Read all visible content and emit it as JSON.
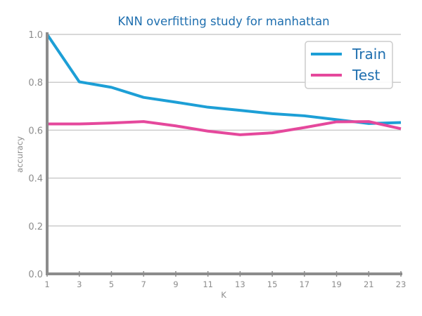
{
  "colors": {
    "title": "#1f6faf",
    "train": "#1d9fd6",
    "test": "#e5489c",
    "axis": "#8c8c8c",
    "grid": "#cccccc",
    "tick_text": "#8c8c8c",
    "legend_text": "#1f6faf"
  },
  "chart_data": {
    "type": "line",
    "title": "KNN overfitting study for manhattan",
    "xlabel": "K",
    "ylabel": "accuracy",
    "x": [
      1,
      3,
      5,
      7,
      9,
      11,
      13,
      15,
      17,
      19,
      21,
      23
    ],
    "xlim": [
      1,
      23
    ],
    "ylim": [
      0.0,
      1.0
    ],
    "yticks": [
      "0.0",
      "0.2",
      "0.4",
      "0.6",
      "0.8",
      "1.0"
    ],
    "xticks": [
      "1",
      "3",
      "5",
      "7",
      "9",
      "11",
      "13",
      "15",
      "17",
      "19",
      "21",
      "23"
    ],
    "grid": "horizontal",
    "legend_position": "top-right",
    "series": [
      {
        "name": "Train",
        "color_key": "train",
        "values": [
          1.0,
          0.802,
          0.779,
          0.737,
          0.717,
          0.696,
          0.683,
          0.669,
          0.66,
          0.644,
          0.628,
          0.632
        ]
      },
      {
        "name": "Test",
        "color_key": "test",
        "values": [
          0.626,
          0.626,
          0.63,
          0.636,
          0.618,
          0.596,
          0.581,
          0.589,
          0.611,
          0.635,
          0.636,
          0.606
        ]
      }
    ]
  }
}
